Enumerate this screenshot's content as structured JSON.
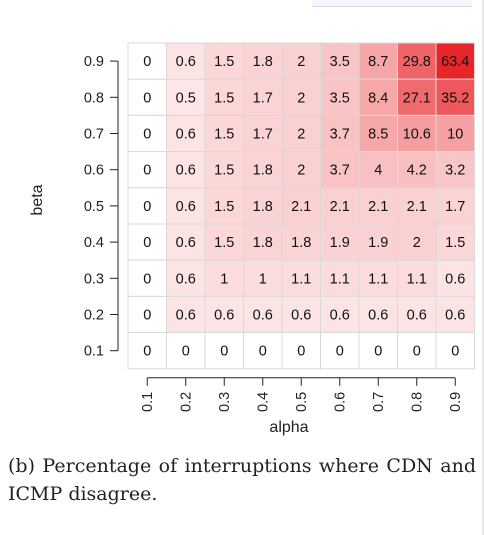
{
  "chart_data": {
    "type": "heatmap",
    "xlabel": "alpha",
    "ylabel": "beta",
    "x": [
      "0.1",
      "0.2",
      "0.3",
      "0.4",
      "0.5",
      "0.6",
      "0.7",
      "0.8",
      "0.9"
    ],
    "y": [
      "0.9",
      "0.8",
      "0.7",
      "0.6",
      "0.5",
      "0.4",
      "0.3",
      "0.2",
      "0.1"
    ],
    "values": [
      [
        "0",
        "0.6",
        "1.5",
        "1.8",
        "2",
        "3.5",
        "8.7",
        "29.8",
        "63.4"
      ],
      [
        "0",
        "0.5",
        "1.5",
        "1.7",
        "2",
        "3.5",
        "8.4",
        "27.1",
        "35.2"
      ],
      [
        "0",
        "0.6",
        "1.5",
        "1.7",
        "2",
        "3.7",
        "8.5",
        "10.6",
        "10"
      ],
      [
        "0",
        "0.6",
        "1.5",
        "1.8",
        "2",
        "3.7",
        "4",
        "4.2",
        "3.2"
      ],
      [
        "0",
        "0.6",
        "1.5",
        "1.8",
        "2.1",
        "2.1",
        "2.1",
        "2.1",
        "1.7"
      ],
      [
        "0",
        "0.6",
        "1.5",
        "1.8",
        "1.8",
        "1.9",
        "1.9",
        "2",
        "1.5"
      ],
      [
        "0",
        "0.6",
        "1",
        "1",
        "1.1",
        "1.1",
        "1.1",
        "1.1",
        "0.6"
      ],
      [
        "0",
        "0.6",
        "0.6",
        "0.6",
        "0.6",
        "0.6",
        "0.6",
        "0.6",
        "0.6"
      ],
      [
        "0",
        "0",
        "0",
        "0",
        "0",
        "0",
        "0",
        "0",
        "0"
      ]
    ],
    "color_low": "#ffffff",
    "color_high": "#e8262a",
    "grid": true
  },
  "caption": "(b) Percentage of interruptions where CDN and ICMP disagree."
}
